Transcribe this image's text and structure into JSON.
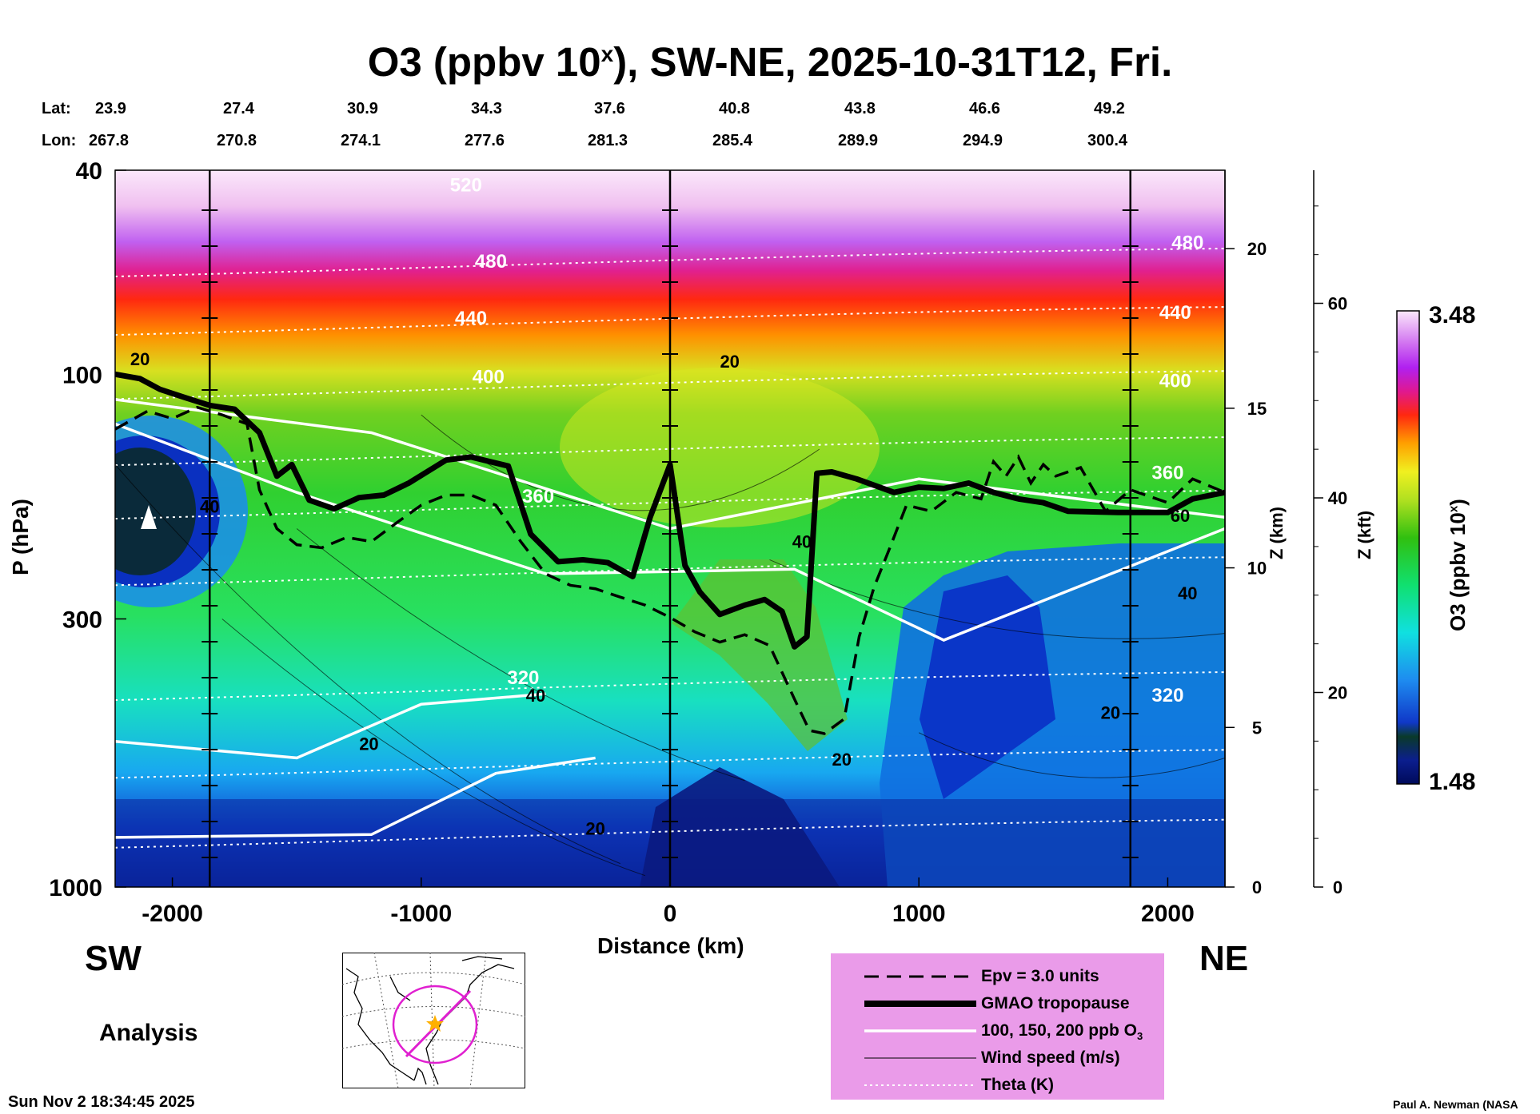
{
  "title": "O3 (ppbv 10",
  "title_sup": "x",
  "title_rest": "), SW-NE, 2025-10-31T12, Fri.",
  "lat_label": "Lat:",
  "lon_label": "Lon:",
  "lats": [
    "23.9",
    "27.4",
    "30.9",
    "34.3",
    "37.6",
    "40.8",
    "43.8",
    "46.6",
    "49.2"
  ],
  "lons": [
    "267.8",
    "270.8",
    "274.1",
    "277.6",
    "281.3",
    "285.4",
    "289.9",
    "294.9",
    "300.4"
  ],
  "sw_label": "SW",
  "ne_label": "NE",
  "analysis_label": "Analysis",
  "timestamp": "Sun Nov  2 18:34:45 2025",
  "credit": "Paul A. Newman (NASA",
  "colors": {
    "o3_high": "#fbe8f9",
    "o3_mid": "#ff2a10",
    "o3_low": "#0a2a8a",
    "legend_bg": "#ea9be9",
    "map_circle": "#e020d0",
    "map_star": "#ffb000"
  },
  "chart_data": {
    "type": "heatmap",
    "title": "O3 (ppbv 10x), SW-NE, 2025-10-31T12, Fri.",
    "xlabel": "Distance (km)",
    "ylabel": "P (hPa)",
    "ylabel_right1": "Z (km)",
    "ylabel_right2": "Z (kft)",
    "colorbar_label": "O3 (ppbv 10",
    "colorbar_label_sup": "x",
    "colorbar_label_end": ")",
    "colorbar_range": [
      1.48,
      3.48
    ],
    "colorbar_max_label": "3.48",
    "colorbar_min_label": "1.48",
    "xlim": [
      -2230,
      2230
    ],
    "ylim": [
      1000,
      40
    ],
    "y_scale": "log",
    "x_ticks": [
      "-2000",
      "-1000",
      "0",
      "1000",
      "2000"
    ],
    "x_tick_values": [
      -2000,
      -1000,
      0,
      1000,
      2000
    ],
    "y_ticks": [
      "40",
      "100",
      "300",
      "1000"
    ],
    "y_tick_values": [
      40,
      100,
      300,
      1000
    ],
    "z_km_ticks": [
      "0",
      "5",
      "10",
      "15",
      "20"
    ],
    "z_km_values": [
      0,
      5,
      10,
      15,
      20
    ],
    "z_kft_ticks": [
      "0",
      "20",
      "40",
      "60"
    ],
    "z_kft_values": [
      0,
      20,
      40,
      60
    ],
    "vertical_lines_km": [
      -1850,
      0,
      1850
    ],
    "contour_labels": {
      "theta": [
        {
          "text": "520",
          "x": -820,
          "p": 44
        },
        {
          "text": "480",
          "x": -720,
          "p": 62
        },
        {
          "text": "480",
          "x": 2080,
          "p": 57
        },
        {
          "text": "440",
          "x": -800,
          "p": 80
        },
        {
          "text": "440",
          "x": 2030,
          "p": 78
        },
        {
          "text": "400",
          "x": -730,
          "p": 104
        },
        {
          "text": "400",
          "x": 2030,
          "p": 106
        },
        {
          "text": "360",
          "x": -530,
          "p": 178
        },
        {
          "text": "360",
          "x": 2000,
          "p": 160
        },
        {
          "text": "320",
          "x": -590,
          "p": 402
        },
        {
          "text": "320",
          "x": 2000,
          "p": 435
        }
      ],
      "wind": [
        {
          "text": "20",
          "x": -2130,
          "p": 96
        },
        {
          "text": "20",
          "x": 240,
          "p": 97
        },
        {
          "text": "40",
          "x": -1850,
          "p": 186
        },
        {
          "text": "40",
          "x": -540,
          "p": 435
        },
        {
          "text": "40",
          "x": 530,
          "p": 218
        },
        {
          "text": "40",
          "x": 2080,
          "p": 275
        },
        {
          "text": "60",
          "x": 2050,
          "p": 194
        },
        {
          "text": "20",
          "x": -1210,
          "p": 540
        },
        {
          "text": "20",
          "x": -300,
          "p": 790
        },
        {
          "text": "20",
          "x": 690,
          "p": 580
        },
        {
          "text": "20",
          "x": 1770,
          "p": 470
        }
      ]
    },
    "tropopause": {
      "x": [
        -2230,
        -2130,
        -2050,
        -1950,
        -1850,
        -1750,
        -1650,
        -1580,
        -1520,
        -1450,
        -1350,
        -1250,
        -1150,
        -1050,
        -900,
        -800,
        -650,
        -560,
        -450,
        -350,
        -250,
        -150,
        -80,
        0,
        60,
        120,
        200,
        300,
        380,
        450,
        500,
        550,
        590,
        650,
        750,
        900,
        1000,
        1100,
        1200,
        1300,
        1400,
        1500,
        1600,
        1800,
        2000,
        2100,
        2230
      ],
      "p": [
        100,
        102,
        107,
        111,
        115,
        117,
        130,
        158,
        150,
        176,
        183,
        174,
        172,
        163,
        147,
        145,
        151,
        205,
        232,
        230,
        233,
        248,
        190,
        150,
        236,
        266,
        294,
        282,
        275,
        290,
        340,
        325,
        156,
        155,
        160,
        170,
        166,
        167,
        163,
        170,
        175,
        178,
        185,
        186,
        186,
        175,
        170
      ]
    },
    "epv_3": {
      "x": [
        -2230,
        -2100,
        -2000,
        -1900,
        -1800,
        -1700,
        -1650,
        -1580,
        -1500,
        -1400,
        -1300,
        -1200,
        -1100,
        -1000,
        -900,
        -800,
        -700,
        -600,
        -500,
        -400,
        -300,
        -200,
        -100,
        0,
        100,
        200,
        300,
        400,
        500,
        560,
        620,
        700,
        760,
        820,
        880,
        950,
        1050,
        1150,
        1250,
        1300,
        1350,
        1400,
        1450,
        1500,
        1550,
        1650,
        1750,
        1850,
        2000,
        2100,
        2230
      ],
      "p": [
        128,
        118,
        122,
        116,
        120,
        125,
        168,
        200,
        215,
        218,
        208,
        212,
        195,
        180,
        172,
        172,
        180,
        212,
        245,
        258,
        262,
        272,
        282,
        298,
        318,
        333,
        322,
        338,
        430,
        495,
        502,
        470,
        325,
        260,
        220,
        180,
        185,
        170,
        175,
        148,
        158,
        145,
        163,
        150,
        158,
        152,
        185,
        168,
        178,
        160,
        170
      ]
    },
    "legend": [
      {
        "label": "Epv = 3.0 units",
        "style": "dashed-black"
      },
      {
        "label": "GMAO tropopause",
        "style": "thick-black"
      },
      {
        "label": "100, 150, 200 ppb O",
        "label_sub": "3",
        "style": "white"
      },
      {
        "label": "Wind speed (m/s)",
        "style": "thin-black"
      },
      {
        "label": "Theta (K)",
        "style": "dotted-white"
      }
    ]
  }
}
